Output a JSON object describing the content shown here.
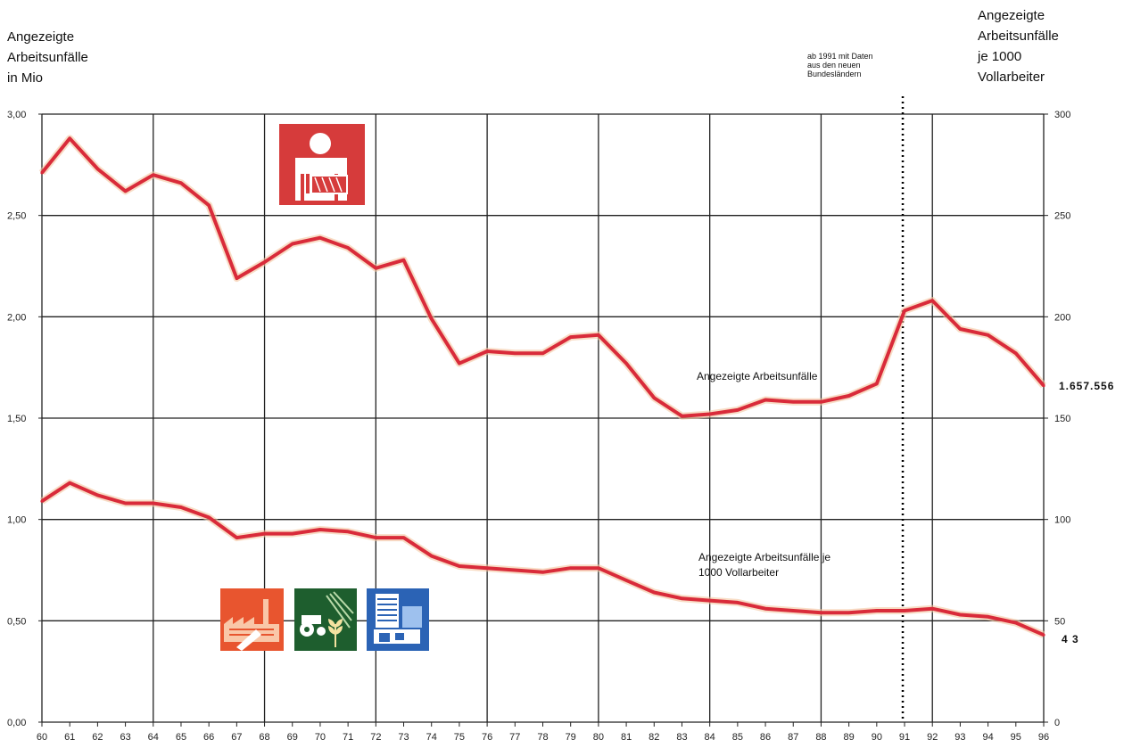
{
  "left_axis_title": "Angezeigte\nArbeitsunfälle\nin Mio",
  "right_axis_title": "Angezeigte\nArbeitsunfälle\nje 1000\nVollarbeiter",
  "annotation_1991": "ab 1991 mit Daten\naus den neuen\nBundesländern",
  "series_label_1": "Angezeigte Arbeitsunfälle",
  "series_label_2": "Angezeigte Arbeitsunfälle je\n1000 Vollarbeiter",
  "end_value_1": "1.657.556",
  "end_value_2": "4 3",
  "icons": [
    "injured-worker-icon",
    "industry-icon",
    "agriculture-icon",
    "public-service-icon"
  ],
  "colors": {
    "line": "#d92b3a",
    "line_glow": "#f3c7a0",
    "grid": "#222222",
    "icon_red": "#d63b3b",
    "icon_orange": "#e8552f",
    "icon_green": "#1e5e2e",
    "icon_blue": "#2b63b5"
  },
  "chart_data": {
    "type": "line",
    "x": [
      "60",
      "61",
      "62",
      "63",
      "64",
      "65",
      "66",
      "67",
      "68",
      "69",
      "70",
      "71",
      "72",
      "73",
      "74",
      "75",
      "76",
      "77",
      "78",
      "79",
      "80",
      "81",
      "82",
      "83",
      "84",
      "85",
      "86",
      "87",
      "88",
      "89",
      "90",
      "91",
      "92",
      "93",
      "94",
      "95",
      "96"
    ],
    "y_left_ticks": [
      "0,00",
      "0,50",
      "1,00",
      "1,50",
      "2,00",
      "2,50",
      "3,00"
    ],
    "y_right_ticks": [
      "0",
      "50",
      "100",
      "150",
      "200",
      "250",
      "300"
    ],
    "ylim_left": [
      0,
      3
    ],
    "ylim_right": [
      0,
      300
    ],
    "grid": true,
    "vertical_marker": "91",
    "series": [
      {
        "axis": "left",
        "values": [
          2.71,
          2.88,
          2.73,
          2.62,
          2.7,
          2.66,
          2.55,
          2.19,
          2.27,
          2.36,
          2.39,
          2.34,
          2.24,
          2.28,
          1.99,
          1.77,
          1.83,
          1.82,
          1.82,
          1.9,
          1.91,
          1.77,
          1.6,
          1.51,
          1.52,
          1.54,
          1.59,
          1.58,
          1.58,
          1.61,
          1.67,
          2.03,
          2.08,
          1.94,
          1.91,
          1.82,
          1.66
        ]
      },
      {
        "axis": "right",
        "values": [
          109,
          118,
          112,
          108,
          108,
          106,
          101,
          91,
          93,
          93,
          95,
          94,
          91,
          91,
          82,
          77,
          76,
          75,
          74,
          76,
          76,
          70,
          64,
          61,
          60,
          59,
          56,
          55,
          54,
          54,
          55,
          55,
          56,
          53,
          52,
          49,
          43
        ]
      }
    ]
  }
}
